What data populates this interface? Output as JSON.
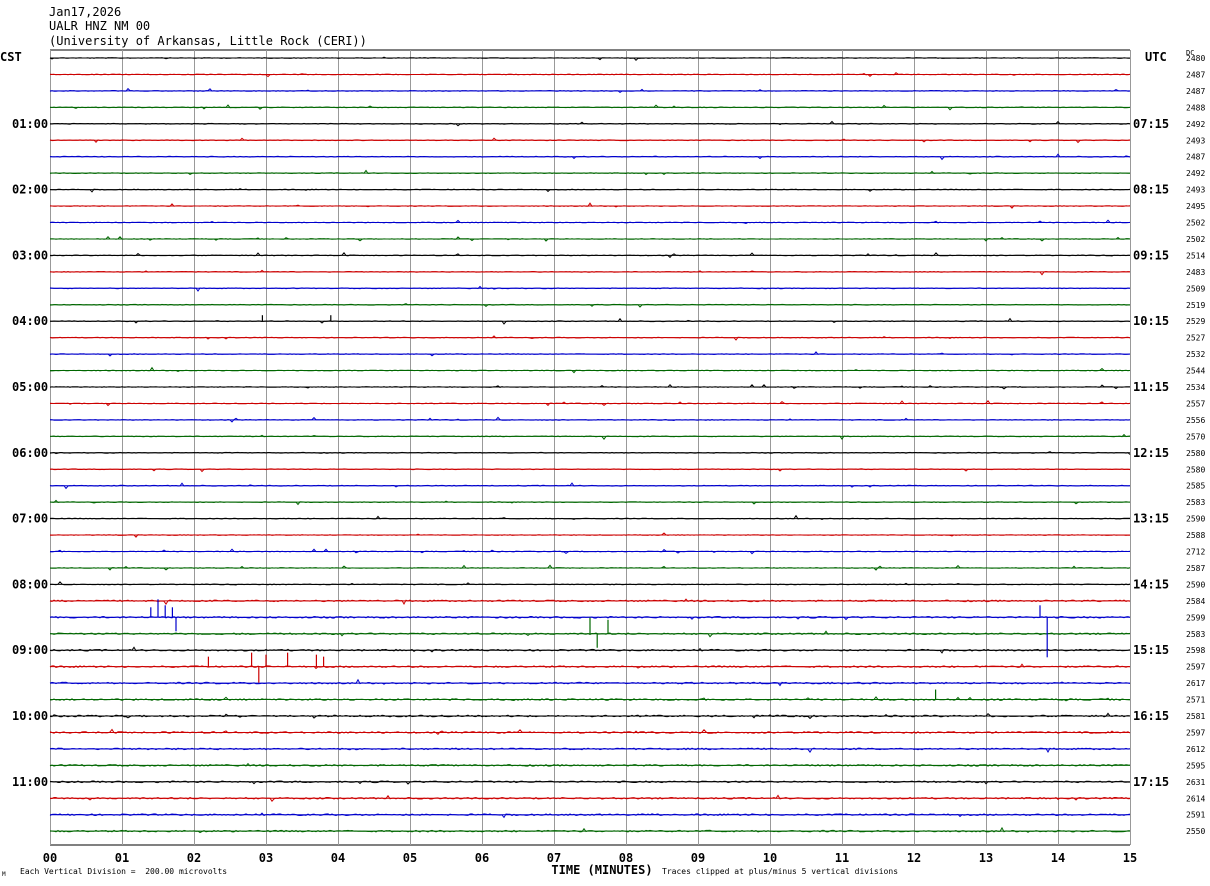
{
  "header": {
    "date": "Jan17,2026",
    "station": "UALR HNZ NM 00",
    "institution": "(University of Arkansas, Little Rock (CERI))"
  },
  "footer": {
    "scale_note": "Each Vertical Division =  200.00 microvolts",
    "clip_note": "Traces clipped at plus/minus 5 vertical divisions",
    "corner_mark": "M"
  },
  "colors": {
    "line0": "#000000",
    "line1": "#cc0000",
    "line2": "#0000cc",
    "line3": "#006600",
    "grid": "#999999"
  },
  "chart_data": {
    "type": "line",
    "title": "UALR HNZ NM 00",
    "xlabel": "TIME (MINUTES)",
    "x_ticks": [
      "00",
      "01",
      "02",
      "03",
      "04",
      "05",
      "06",
      "07",
      "08",
      "09",
      "10",
      "11",
      "12",
      "13",
      "14",
      "15"
    ],
    "xlim": [
      0,
      15
    ],
    "left_axis_title": "CST",
    "right_axis_title": "UTC",
    "dc_title": "DC",
    "left_hour_labels": [
      "01:00",
      "02:00",
      "03:00",
      "04:00",
      "05:00",
      "06:00",
      "07:00",
      "08:00",
      "09:00",
      "10:00",
      "11:00"
    ],
    "right_hour_labels": [
      "07:15",
      "08:15",
      "09:15",
      "10:15",
      "11:15",
      "12:15",
      "13:15",
      "14:15",
      "15:15",
      "16:15",
      "17:15"
    ],
    "dc_offsets": [
      "2480",
      "2487",
      "2487",
      "2488",
      "2492",
      "2493",
      "2487",
      "2492",
      "2493",
      "2495",
      "2502",
      "2502",
      "2514",
      "2483",
      "2509",
      "2519",
      "2529",
      "2527",
      "2532",
      "2544",
      "2534",
      "2557",
      "2556",
      "2570",
      "2580",
      "2580",
      "2585",
      "2583",
      "2590",
      "2588",
      "2712",
      "2587",
      "2590",
      "2584",
      "2599",
      "2583",
      "2598",
      "2597",
      "2617",
      "2571",
      "2581",
      "2597",
      "2612",
      "2595",
      "2631",
      "2614",
      "2591",
      "2550"
    ],
    "trace_colors_cycle": [
      "black",
      "red",
      "blue",
      "green"
    ],
    "trace_count": 48,
    "minutes_per_trace": 15,
    "vertical_division_microvolts": 200.0,
    "clip_divisions": 5
  }
}
